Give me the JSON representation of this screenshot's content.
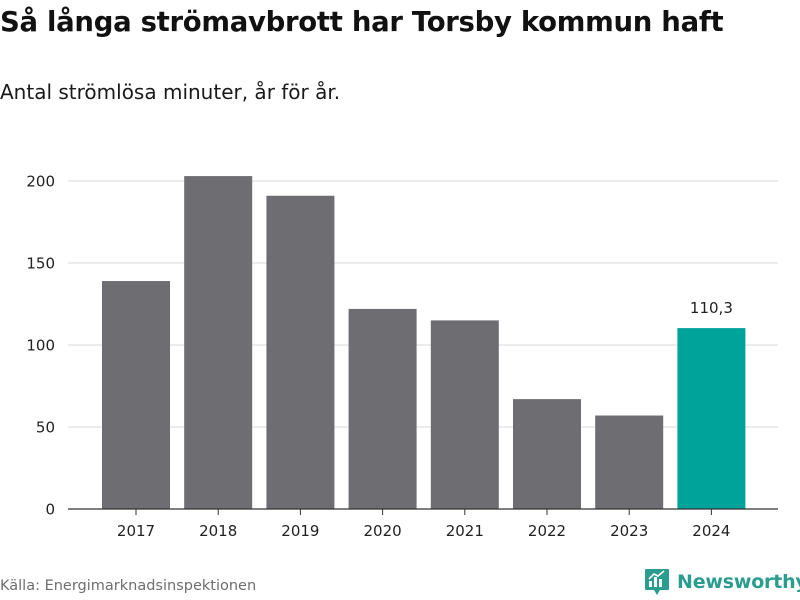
{
  "header": {
    "title": "Så långa strömavbrott har Torsby kommun haft",
    "subtitle": "Antal strömlösa minuter, år för år."
  },
  "footer": {
    "source": "Källa: Energimarknadsinspektionen",
    "brand": "Newsworthy",
    "brand_icon": "newsworthy-logo-icon",
    "brand_color": "#2a9d8f"
  },
  "chart_data": {
    "type": "bar",
    "categories": [
      "2017",
      "2018",
      "2019",
      "2020",
      "2021",
      "2022",
      "2023",
      "2024"
    ],
    "values": [
      139,
      203,
      191,
      122,
      115,
      67,
      57,
      110.3
    ],
    "data_labels": [
      "",
      "",
      "",
      "",
      "",
      "",
      "",
      "110,3"
    ],
    "highlight_index": 7,
    "bar_color": "#6e6d72",
    "highlight_color": "#00a39a",
    "ylim": [
      0,
      200
    ],
    "yticks": [
      0,
      50,
      100,
      150,
      200
    ],
    "grid": true,
    "xlabel": "",
    "ylabel": ""
  }
}
